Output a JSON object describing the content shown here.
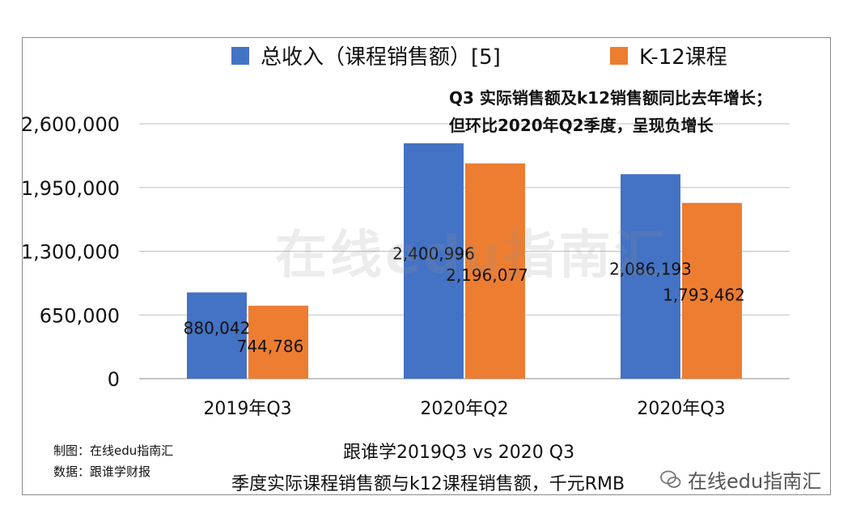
{
  "legend": {
    "total": "总收入（课程销售额）[5]",
    "k12": "K-12课程"
  },
  "annotation": {
    "line1": "Q3 实际销售额及k12销售额同比去年增长；",
    "line2": "但环比2020年Q2季度，呈现负增长"
  },
  "watermark": "在线edu指南汇",
  "source": {
    "made_by": "制图：在线edu指南汇",
    "data_from": "数据：跟谁学财报"
  },
  "caption": {
    "line1": "跟谁学2019Q3 vs 2020 Q3",
    "line2": "季度实际课程销售额与k12课程销售额，千元RMB"
  },
  "brand": "在线edu指南汇",
  "colors": {
    "total": "#4472C4",
    "k12": "#ED7D31",
    "grid": "#BFBFBF"
  },
  "chart_data": {
    "type": "bar",
    "categories": [
      "2019年Q3",
      "2020年Q2",
      "2020年Q3"
    ],
    "series": [
      {
        "name": "总收入（课程销售额）[5]",
        "values": [
          880042,
          2400996,
          2086193
        ],
        "labels": [
          "880,042",
          "2,400,996",
          "2,086,193"
        ]
      },
      {
        "name": "K-12课程",
        "values": [
          744786,
          2196077,
          1793462
        ],
        "labels": [
          "744,786",
          "2,196,077",
          "1,793,462"
        ]
      }
    ],
    "yticks": [
      0,
      650000,
      1300000,
      1950000,
      2600000
    ],
    "ytick_labels": [
      "0",
      "650,000",
      "1,300,000",
      "1,950,000",
      "2,600,000"
    ],
    "ylim": [
      0,
      2600000
    ],
    "grid": true,
    "legend_position": "top"
  }
}
